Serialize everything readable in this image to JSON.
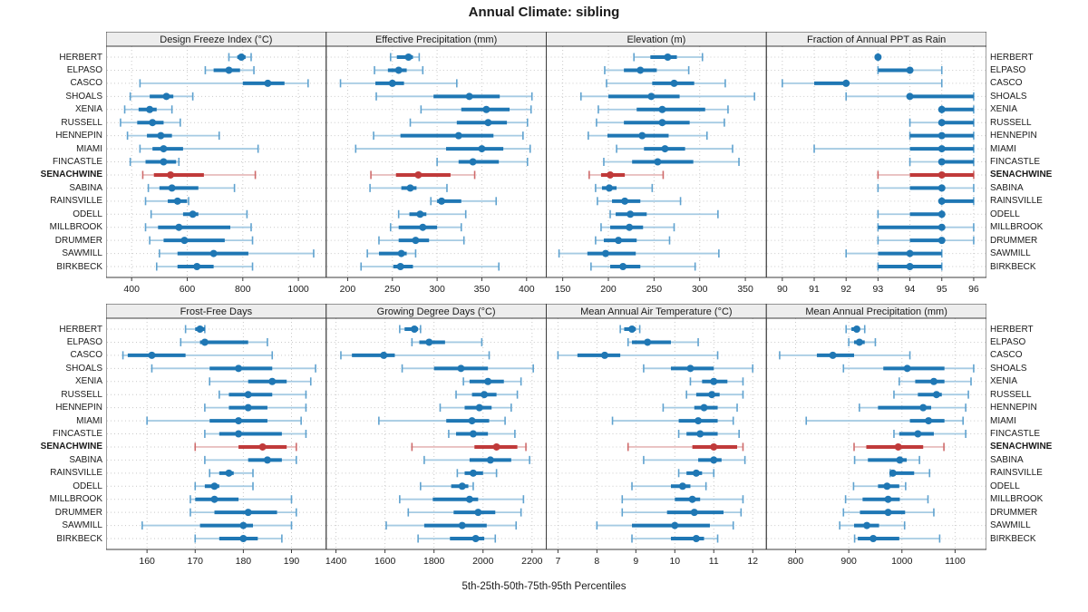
{
  "title": "Annual Climate: sibling",
  "xlabel": "5th-25th-50th-75th-95th Percentiles",
  "highlight_site": "SENACHWINE",
  "colors": {
    "blue": "#1f77b4",
    "blue_light": "#a6cbe3",
    "blue_cap": "#5fa2cf",
    "red": "#c03a3a",
    "red_light": "#e9c0c0",
    "red_cap": "#cf6b6b",
    "grid": "#c9c9c9",
    "header_bg": "#ededed",
    "border": "#3c3c3c",
    "text": "#1a1a1a"
  },
  "chart_data": {
    "type": "dot-whisker-trellis",
    "percentile_labels": [
      "5th",
      "25th",
      "50th",
      "75th",
      "95th"
    ],
    "sites": [
      "HERBERT",
      "ELPASO",
      "CASCO",
      "SHOALS",
      "XENIA",
      "RUSSELL",
      "HENNEPIN",
      "MIAMI",
      "FINCASTLE",
      "SENACHWINE",
      "SABINA",
      "RAINSVILLE",
      "ODELL",
      "MILLBROOK",
      "DRUMMER",
      "SAWMILL",
      "BIRKBECK"
    ],
    "panels": [
      {
        "title": "Design Freeze Index (°C)",
        "ticks": [
          400,
          600,
          800,
          1000
        ],
        "xlim": [
          308,
          1100
        ],
        "rows": [
          [
            750,
            780,
            795,
            810,
            830
          ],
          [
            665,
            695,
            750,
            790,
            840
          ],
          [
            430,
            800,
            890,
            950,
            1035
          ],
          [
            395,
            465,
            525,
            550,
            620
          ],
          [
            375,
            425,
            465,
            490,
            545
          ],
          [
            360,
            420,
            475,
            515,
            575
          ],
          [
            385,
            455,
            505,
            545,
            715
          ],
          [
            430,
            475,
            515,
            585,
            855
          ],
          [
            395,
            450,
            515,
            560,
            570
          ],
          [
            440,
            480,
            540,
            660,
            845
          ],
          [
            460,
            500,
            545,
            640,
            770
          ],
          [
            450,
            530,
            565,
            599,
            605
          ],
          [
            470,
            585,
            620,
            640,
            815
          ],
          [
            450,
            495,
            570,
            755,
            830
          ],
          [
            465,
            515,
            590,
            735,
            835
          ],
          [
            500,
            565,
            695,
            820,
            1055
          ],
          [
            490,
            565,
            635,
            695,
            835
          ]
        ]
      },
      {
        "title": "Effective Precipitation (mm)",
        "ticks": [
          200,
          250,
          300,
          350,
          400
        ],
        "xlim": [
          176,
          422
        ],
        "rows": [
          [
            248,
            255,
            268,
            273,
            280
          ],
          [
            230,
            245,
            257,
            266,
            284
          ],
          [
            192,
            231,
            250,
            263,
            322
          ],
          [
            232,
            296,
            336,
            370,
            406
          ],
          [
            282,
            327,
            355,
            381,
            405
          ],
          [
            270,
            322,
            357,
            378,
            401
          ],
          [
            229,
            259,
            324,
            363,
            396
          ],
          [
            209,
            310,
            350,
            374,
            404
          ],
          [
            300,
            324,
            340,
            369,
            401
          ],
          [
            226,
            254,
            279,
            315,
            342
          ],
          [
            225,
            260,
            270,
            277,
            311
          ],
          [
            293,
            300,
            305,
            327,
            366
          ],
          [
            257,
            269,
            281,
            288,
            332
          ],
          [
            248,
            257,
            284,
            300,
            327
          ],
          [
            235,
            257,
            276,
            291,
            330
          ],
          [
            222,
            235,
            260,
            266,
            276
          ],
          [
            215,
            251,
            259,
            273,
            369
          ]
        ]
      },
      {
        "title": "Elevation (m)",
        "ticks": [
          150,
          200,
          250,
          300,
          350
        ],
        "xlim": [
          132,
          373
        ],
        "rows": [
          [
            228,
            246,
            265,
            275,
            303
          ],
          [
            196,
            217,
            235,
            253,
            288
          ],
          [
            198,
            248,
            272,
            294,
            328
          ],
          [
            170,
            200,
            247,
            278,
            360
          ],
          [
            189,
            231,
            259,
            306,
            331
          ],
          [
            187,
            217,
            259,
            289,
            327
          ],
          [
            178,
            199,
            237,
            266,
            308
          ],
          [
            209,
            239,
            262,
            284,
            336
          ],
          [
            195,
            226,
            254,
            293,
            343
          ],
          [
            179,
            192,
            202,
            218,
            260
          ],
          [
            186,
            193,
            201,
            209,
            248
          ],
          [
            188,
            204,
            218,
            235,
            279
          ],
          [
            202,
            208,
            224,
            242,
            320
          ],
          [
            192,
            202,
            223,
            238,
            272
          ],
          [
            186,
            195,
            211,
            231,
            267
          ],
          [
            146,
            177,
            197,
            230,
            321
          ],
          [
            181,
            202,
            216,
            235,
            295
          ]
        ]
      },
      {
        "title": "Fraction of Annual PPT as Rain",
        "ticks": [
          90,
          91,
          92,
          93,
          94,
          95,
          96
        ],
        "xlim": [
          89.5,
          96.4
        ],
        "rows": [
          [
            93,
            93,
            93,
            93,
            93
          ],
          [
            93,
            93,
            94,
            94,
            95
          ],
          [
            90,
            91,
            92,
            92,
            95
          ],
          [
            92,
            94,
            94,
            96,
            96
          ],
          [
            95,
            95,
            95,
            96,
            96
          ],
          [
            94,
            95,
            95,
            96,
            96
          ],
          [
            94,
            94,
            95,
            96,
            96
          ],
          [
            91,
            94,
            95,
            96,
            96
          ],
          [
            94,
            95,
            95,
            96,
            96
          ],
          [
            93,
            94,
            95,
            96,
            96
          ],
          [
            93,
            94,
            95,
            95,
            96
          ],
          [
            95,
            95,
            95,
            96,
            96
          ],
          [
            93,
            94,
            95,
            95,
            95
          ],
          [
            93,
            93,
            95,
            95,
            96
          ],
          [
            93,
            94,
            95,
            95,
            96
          ],
          [
            92,
            93,
            94,
            95,
            95
          ],
          [
            93,
            93,
            94,
            95,
            95
          ]
        ]
      },
      {
        "title": "Frost-Free Days",
        "ticks": [
          160,
          170,
          180,
          190
        ],
        "xlim": [
          151.5,
          197.2
        ],
        "rows": [
          [
            168,
            170,
            171,
            172,
            172
          ],
          [
            167,
            171,
            172,
            181,
            185
          ],
          [
            155,
            156,
            161,
            168,
            186
          ],
          [
            161,
            173,
            179,
            186,
            195
          ],
          [
            173,
            181,
            186,
            189,
            194
          ],
          [
            175,
            177,
            181,
            186,
            193
          ],
          [
            172,
            177,
            181,
            185,
            193
          ],
          [
            160,
            173,
            179,
            185,
            192
          ],
          [
            172,
            175,
            179,
            188,
            193
          ],
          [
            170,
            179,
            184,
            189,
            191
          ],
          [
            172,
            181,
            185,
            188,
            191
          ],
          [
            173,
            175,
            177,
            178,
            182
          ],
          [
            170,
            172,
            174,
            175,
            182
          ],
          [
            169,
            170,
            174,
            179,
            190
          ],
          [
            169,
            174,
            181,
            187,
            191
          ],
          [
            159,
            171,
            180,
            182,
            190
          ],
          [
            170,
            175,
            180,
            183,
            188
          ]
        ]
      },
      {
        "title": "Growing Degree Days (°C)",
        "ticks": [
          1400,
          1600,
          1800,
          2000,
          2200
        ],
        "xlim": [
          1360,
          2258
        ],
        "rows": [
          [
            1660,
            1680,
            1720,
            1735,
            1745
          ],
          [
            1710,
            1740,
            1780,
            1845,
            1995
          ],
          [
            1420,
            1465,
            1595,
            1640,
            2025
          ],
          [
            1670,
            1800,
            1910,
            2020,
            2205
          ],
          [
            1920,
            1945,
            2020,
            2085,
            2155
          ],
          [
            1890,
            1955,
            2005,
            2055,
            2140
          ],
          [
            1825,
            1925,
            1985,
            2035,
            2115
          ],
          [
            1575,
            1850,
            1955,
            2025,
            2090
          ],
          [
            1860,
            1890,
            1960,
            2020,
            2130
          ],
          [
            1710,
            1965,
            2055,
            2140,
            2175
          ],
          [
            1760,
            1945,
            2030,
            2115,
            2190
          ],
          [
            1895,
            1925,
            1960,
            2000,
            2055
          ],
          [
            1745,
            1870,
            1915,
            1940,
            1960
          ],
          [
            1660,
            1795,
            1945,
            1980,
            2165
          ],
          [
            1695,
            1880,
            1980,
            2050,
            2155
          ],
          [
            1605,
            1760,
            1915,
            2015,
            2135
          ],
          [
            1735,
            1865,
            1970,
            2005,
            2050
          ]
        ]
      },
      {
        "title": "Mean Annual Air Temperature (°C)",
        "ticks": [
          7,
          8,
          9,
          10,
          11,
          12
        ],
        "xlim": [
          6.7,
          12.35
        ],
        "rows": [
          [
            8.6,
            8.7,
            8.9,
            9.0,
            9.1
          ],
          [
            8.8,
            8.9,
            9.3,
            9.9,
            10.6
          ],
          [
            7.0,
            7.5,
            8.2,
            8.6,
            11.1
          ],
          [
            9.2,
            9.9,
            10.4,
            11.0,
            12.0
          ],
          [
            10.4,
            10.7,
            11.0,
            11.35,
            11.75
          ],
          [
            10.3,
            10.55,
            10.95,
            11.15,
            11.75
          ],
          [
            9.7,
            10.5,
            10.75,
            11.1,
            11.6
          ],
          [
            8.4,
            10.1,
            10.6,
            11.1,
            11.5
          ],
          [
            10.1,
            10.3,
            10.65,
            11.1,
            11.65
          ],
          [
            8.8,
            10.45,
            11.0,
            11.6,
            11.75
          ],
          [
            9.2,
            10.6,
            11.0,
            11.2,
            11.8
          ],
          [
            10.1,
            10.3,
            10.55,
            10.7,
            11.0
          ],
          [
            8.9,
            9.9,
            10.2,
            10.4,
            10.8
          ],
          [
            8.65,
            10.0,
            10.45,
            10.65,
            11.75
          ],
          [
            8.65,
            9.8,
            10.5,
            11.25,
            11.7
          ],
          [
            8.0,
            8.9,
            10.0,
            10.9,
            11.5
          ],
          [
            8.9,
            9.9,
            10.55,
            10.75,
            11.1
          ]
        ]
      },
      {
        "title": "Mean Annual Precipitation (mm)",
        "ticks": [
          800,
          900,
          1000,
          1100
        ],
        "xlim": [
          745,
          1159
        ],
        "rows": [
          [
            895,
            905,
            915,
            920,
            930
          ],
          [
            900,
            910,
            920,
            930,
            950
          ],
          [
            770,
            840,
            870,
            910,
            1015
          ],
          [
            890,
            965,
            1010,
            1080,
            1135
          ],
          [
            995,
            1025,
            1060,
            1080,
            1130
          ],
          [
            985,
            1030,
            1065,
            1075,
            1125
          ],
          [
            920,
            955,
            1040,
            1055,
            1120
          ],
          [
            820,
            1015,
            1050,
            1080,
            1115
          ],
          [
            985,
            995,
            1030,
            1060,
            1120
          ],
          [
            910,
            933,
            993,
            1040,
            1079
          ],
          [
            911,
            936,
            996,
            1009,
            1033
          ],
          [
            978,
            979,
            983,
            1023,
            1052
          ],
          [
            909,
            955,
            972,
            995,
            1007
          ],
          [
            894,
            926,
            974,
            996,
            1049
          ],
          [
            890,
            921,
            974,
            1006,
            1060
          ],
          [
            883,
            910,
            934,
            957,
            1005
          ],
          [
            911,
            917,
            946,
            995,
            1071
          ]
        ]
      }
    ]
  }
}
